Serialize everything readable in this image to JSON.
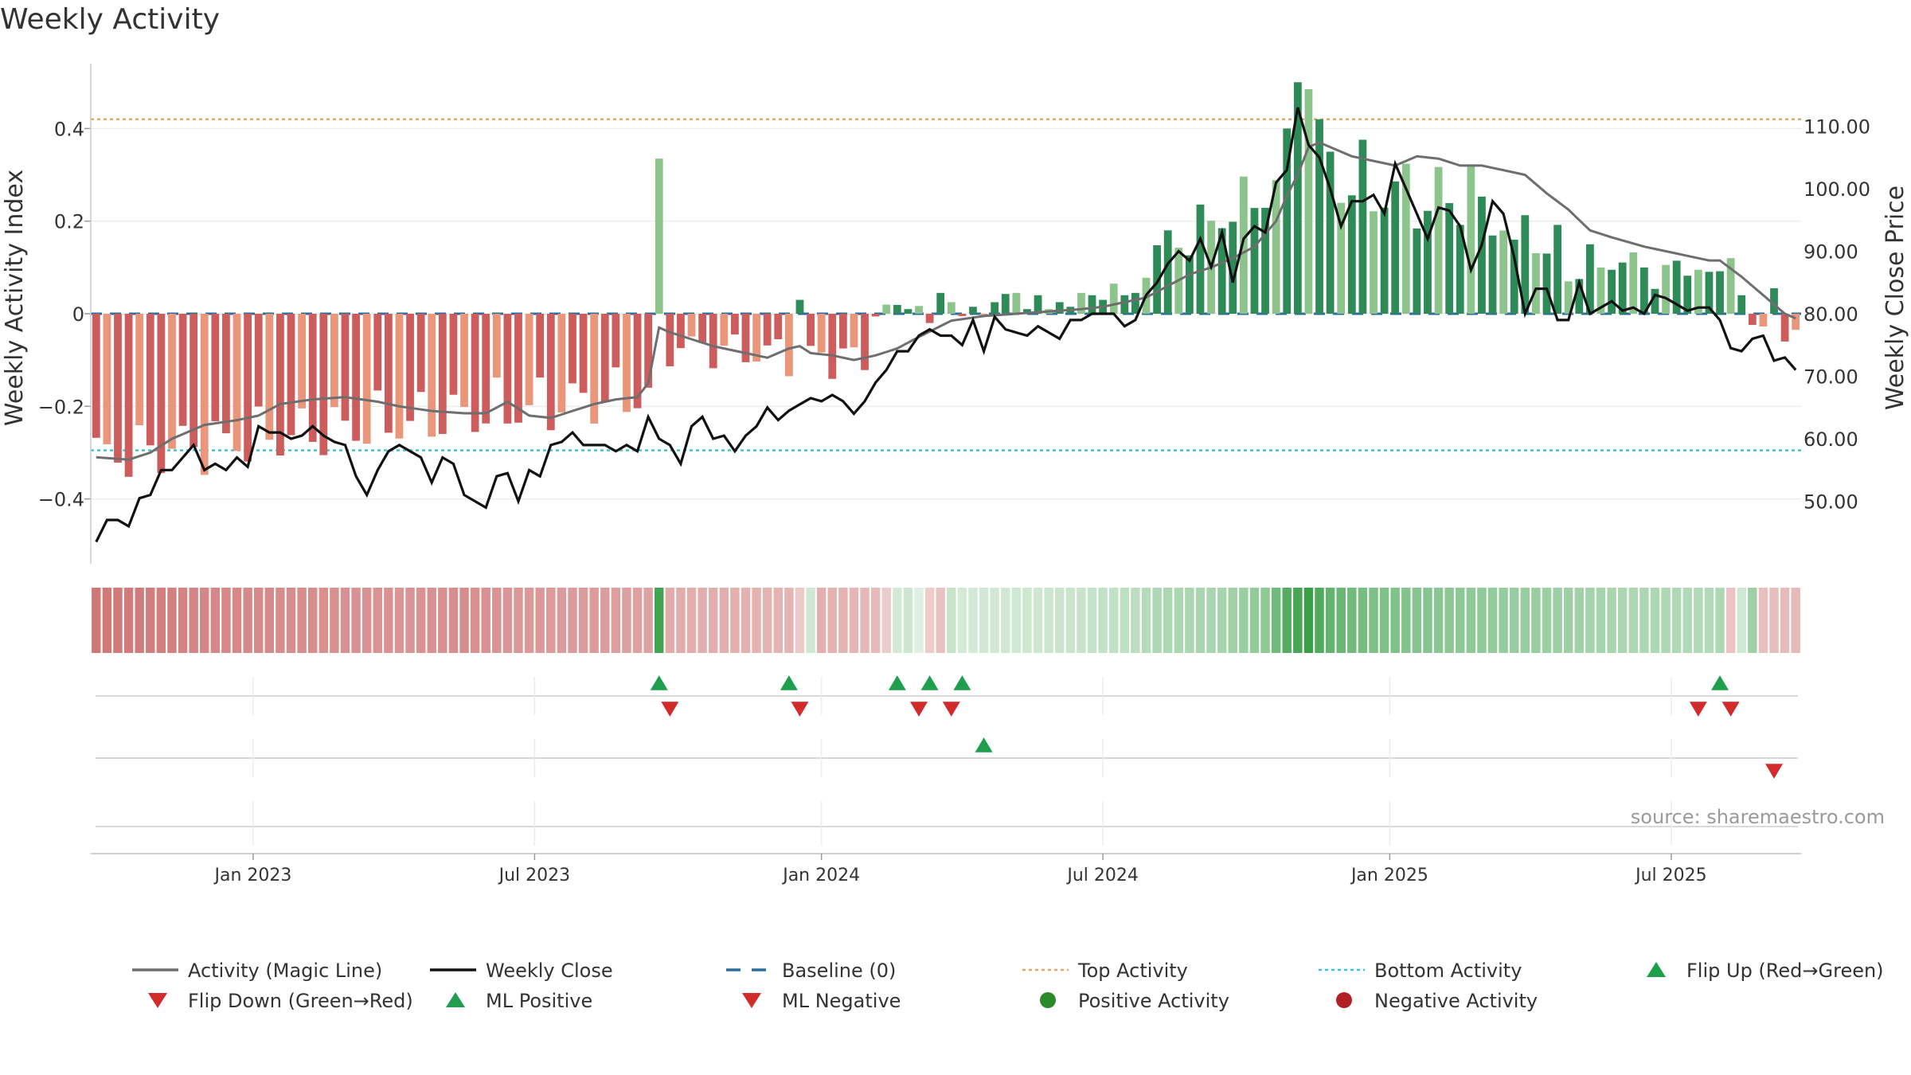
{
  "chart_data": {
    "type": "bar",
    "title": "Weekly Activity",
    "ylabel_left": "Weekly Activity Index",
    "ylabel_right": "Weekly Close Price",
    "y_left_range": [
      -0.54,
      0.54
    ],
    "y_right_range": [
      40,
      120
    ],
    "y_left_ticks": [
      -0.4,
      -0.2,
      0,
      0.2,
      0.4
    ],
    "y_left_tick_labels": [
      "−0.4",
      "−0.2",
      "0",
      "0.2",
      "0.4"
    ],
    "y_right_ticks": [
      50,
      60,
      70,
      80,
      90,
      100,
      110
    ],
    "y_right_tick_labels": [
      "50.00",
      "60.00",
      "70.00",
      "80.00",
      "90.00",
      "100.00",
      "110.00"
    ],
    "week_count": 158,
    "x_ticks": [
      {
        "label": "Jan 2023",
        "week": 14.5
      },
      {
        "label": "Jul 2023",
        "week": 40.5
      },
      {
        "label": "Jan 2024",
        "week": 67
      },
      {
        "label": "Jul 2024",
        "week": 93
      },
      {
        "label": "Jan 2025",
        "week": 119.5
      },
      {
        "label": "Jul 2025",
        "week": 145.5
      }
    ],
    "top_activity": 0.42,
    "bottom_activity": -0.295,
    "activity_segments": [
      {
        "from": 0,
        "to": 52,
        "start": -0.31,
        "end": -0.17,
        "noise": 0.06
      },
      {
        "from": 53,
        "to": 71,
        "start": -0.07,
        "end": -0.1,
        "noise": 0.04
      },
      {
        "from": 72,
        "to": 96,
        "start": 0.005,
        "end": 0.045,
        "noise": 0.02
      },
      {
        "from": 97,
        "to": 111,
        "start": 0.12,
        "end": 0.3,
        "noise": 0.05
      },
      {
        "from": 112,
        "to": 125,
        "start": 0.3,
        "end": 0.24,
        "noise": 0.08
      },
      {
        "from": 126,
        "to": 152,
        "start": 0.22,
        "end": 0.05,
        "noise": 0.04
      },
      {
        "from": 153,
        "to": 157,
        "start": -0.03,
        "end": -0.04,
        "noise": 0.01
      }
    ],
    "activity_overrides": [
      {
        "week": 52,
        "value": 0.335
      },
      {
        "week": 65,
        "value": 0.03
      },
      {
        "week": 75,
        "value": 0.01
      },
      {
        "week": 77,
        "value": -0.02
      },
      {
        "week": 78,
        "value": 0.045
      },
      {
        "week": 79,
        "value": 0.025
      },
      {
        "week": 80,
        "value": -0.005
      },
      {
        "week": 81,
        "value": 0.015
      },
      {
        "week": 82,
        "value": -0.005
      },
      {
        "week": 83,
        "value": 0.025
      },
      {
        "week": 85,
        "value": 0.045
      },
      {
        "week": 86,
        "value": 0.01
      },
      {
        "week": 87,
        "value": 0.04
      },
      {
        "week": 88,
        "value": 0.01
      },
      {
        "week": 89,
        "value": 0.025
      },
      {
        "week": 90,
        "value": 0.015
      },
      {
        "week": 91,
        "value": 0.045
      },
      {
        "week": 92,
        "value": 0.04
      },
      {
        "week": 93,
        "value": 0.03
      },
      {
        "week": 94,
        "value": 0.065
      },
      {
        "week": 95,
        "value": 0.04
      },
      {
        "week": 96,
        "value": 0.045
      },
      {
        "week": 110,
        "value": 0.4
      },
      {
        "week": 111,
        "value": 0.5
      },
      {
        "week": 112,
        "value": 0.485
      },
      {
        "week": 113,
        "value": 0.42
      },
      {
        "week": 114,
        "value": 0.35
      },
      {
        "week": 127,
        "value": 0.32
      },
      {
        "week": 131,
        "value": 0.16
      },
      {
        "week": 134,
        "value": 0.13
      },
      {
        "week": 136,
        "value": 0.07
      },
      {
        "week": 137,
        "value": 0.075
      },
      {
        "week": 139,
        "value": 0.1
      },
      {
        "week": 143,
        "value": 0.1
      },
      {
        "week": 148,
        "value": 0.095
      },
      {
        "week": 151,
        "value": 0.12
      },
      {
        "week": 152,
        "value": 0.04
      },
      {
        "week": 155,
        "value": 0.055
      },
      {
        "week": 156,
        "value": -0.06
      }
    ],
    "close_points": [
      [
        0,
        43.5
      ],
      [
        1,
        47
      ],
      [
        2,
        47
      ],
      [
        3,
        46
      ],
      [
        4,
        50.5
      ],
      [
        5,
        51
      ],
      [
        6,
        55
      ],
      [
        7,
        55
      ],
      [
        8,
        57
      ],
      [
        9,
        59
      ],
      [
        10,
        55
      ],
      [
        11,
        56
      ],
      [
        12,
        55
      ],
      [
        13,
        57
      ],
      [
        14,
        55.5
      ],
      [
        15,
        62
      ],
      [
        16,
        61
      ],
      [
        17,
        61
      ],
      [
        18,
        60
      ],
      [
        19,
        60.5
      ],
      [
        20,
        62
      ],
      [
        21,
        60.5
      ],
      [
        22,
        59.5
      ],
      [
        23,
        59
      ],
      [
        24,
        54
      ],
      [
        25,
        51
      ],
      [
        26,
        55
      ],
      [
        27,
        58
      ],
      [
        28,
        59
      ],
      [
        29,
        58
      ],
      [
        30,
        57
      ],
      [
        31,
        53
      ],
      [
        32,
        57
      ],
      [
        33,
        56
      ],
      [
        34,
        51
      ],
      [
        35,
        50
      ],
      [
        36,
        49
      ],
      [
        37,
        54
      ],
      [
        38,
        54.5
      ],
      [
        39,
        50
      ],
      [
        40,
        55
      ],
      [
        41,
        54
      ],
      [
        42,
        59
      ],
      [
        43,
        59.5
      ],
      [
        44,
        61
      ],
      [
        45,
        59
      ],
      [
        46,
        59
      ],
      [
        47,
        59
      ],
      [
        48,
        58
      ],
      [
        49,
        59
      ],
      [
        50,
        58
      ],
      [
        51,
        63.5
      ],
      [
        52,
        60
      ],
      [
        53,
        59
      ],
      [
        54,
        56
      ],
      [
        55,
        62
      ],
      [
        56,
        63.5
      ],
      [
        57,
        60
      ],
      [
        58,
        60.5
      ],
      [
        59,
        58
      ],
      [
        60,
        60.5
      ],
      [
        61,
        62
      ],
      [
        62,
        65
      ],
      [
        63,
        63
      ],
      [
        64,
        64.5
      ],
      [
        65,
        65.5
      ],
      [
        66,
        66.5
      ],
      [
        67,
        66
      ],
      [
        68,
        67
      ],
      [
        69,
        66
      ],
      [
        70,
        64
      ],
      [
        71,
        66
      ],
      [
        72,
        69
      ],
      [
        73,
        71
      ],
      [
        74,
        74
      ],
      [
        75,
        74
      ],
      [
        76,
        76.5
      ],
      [
        77,
        77.5
      ],
      [
        78,
        76.5
      ],
      [
        79,
        76.5
      ],
      [
        80,
        75
      ],
      [
        81,
        79
      ],
      [
        82,
        74
      ],
      [
        83,
        79.5
      ],
      [
        84,
        77.5
      ],
      [
        85,
        77
      ],
      [
        86,
        76.5
      ],
      [
        87,
        78
      ],
      [
        88,
        77
      ],
      [
        89,
        76
      ],
      [
        90,
        79
      ],
      [
        91,
        79
      ],
      [
        92,
        80
      ],
      [
        93,
        80
      ],
      [
        94,
        80
      ],
      [
        95,
        78
      ],
      [
        96,
        79
      ],
      [
        97,
        83
      ],
      [
        98,
        85
      ],
      [
        99,
        88
      ],
      [
        100,
        90
      ],
      [
        101,
        88.5
      ],
      [
        102,
        92
      ],
      [
        103,
        87.5
      ],
      [
        104,
        93
      ],
      [
        105,
        85
      ],
      [
        106,
        92
      ],
      [
        107,
        94
      ],
      [
        108,
        93
      ],
      [
        109,
        101
      ],
      [
        110,
        103
      ],
      [
        111,
        113
      ],
      [
        112,
        107
      ],
      [
        113,
        105
      ],
      [
        114,
        100
      ],
      [
        115,
        94
      ],
      [
        116,
        98
      ],
      [
        117,
        98
      ],
      [
        118,
        99
      ],
      [
        119,
        96
      ],
      [
        120,
        104
      ],
      [
        121,
        100
      ],
      [
        122,
        96
      ],
      [
        123,
        92
      ],
      [
        124,
        97
      ],
      [
        125,
        96.5
      ],
      [
        126,
        94
      ],
      [
        127,
        87
      ],
      [
        128,
        91
      ],
      [
        129,
        98
      ],
      [
        130,
        96
      ],
      [
        131,
        89
      ],
      [
        132,
        80
      ],
      [
        133,
        84
      ],
      [
        134,
        84
      ],
      [
        135,
        79
      ],
      [
        136,
        79
      ],
      [
        137,
        85
      ],
      [
        138,
        80
      ],
      [
        139,
        81
      ],
      [
        140,
        82
      ],
      [
        141,
        80.5
      ],
      [
        142,
        81
      ],
      [
        143,
        80
      ],
      [
        144,
        83
      ],
      [
        145,
        82.5
      ],
      [
        146,
        81.5
      ],
      [
        147,
        80.5
      ],
      [
        148,
        81
      ],
      [
        149,
        81
      ],
      [
        150,
        79
      ],
      [
        151,
        74.5
      ],
      [
        152,
        74
      ],
      [
        153,
        76
      ],
      [
        154,
        76.5
      ],
      [
        155,
        72.5
      ],
      [
        156,
        73
      ],
      [
        157,
        71
      ]
    ],
    "magic_line_points": [
      [
        0,
        -0.31
      ],
      [
        3,
        -0.315
      ],
      [
        5,
        -0.3
      ],
      [
        7,
        -0.27
      ],
      [
        10,
        -0.24
      ],
      [
        13,
        -0.23
      ],
      [
        15,
        -0.22
      ],
      [
        17,
        -0.195
      ],
      [
        20,
        -0.185
      ],
      [
        23,
        -0.18
      ],
      [
        26,
        -0.19
      ],
      [
        28,
        -0.2
      ],
      [
        31,
        -0.21
      ],
      [
        34,
        -0.215
      ],
      [
        36,
        -0.215
      ],
      [
        38,
        -0.19
      ],
      [
        40,
        -0.22
      ],
      [
        42,
        -0.225
      ],
      [
        44,
        -0.21
      ],
      [
        46,
        -0.195
      ],
      [
        48,
        -0.185
      ],
      [
        50,
        -0.18
      ],
      [
        51,
        -0.15
      ],
      [
        52,
        -0.03
      ],
      [
        53,
        -0.04
      ],
      [
        55,
        -0.055
      ],
      [
        57,
        -0.07
      ],
      [
        60,
        -0.085
      ],
      [
        62,
        -0.095
      ],
      [
        64,
        -0.075
      ],
      [
        65,
        -0.07
      ],
      [
        66,
        -0.085
      ],
      [
        68,
        -0.09
      ],
      [
        70,
        -0.1
      ],
      [
        72,
        -0.09
      ],
      [
        74,
        -0.075
      ],
      [
        76,
        -0.05
      ],
      [
        79,
        -0.015
      ],
      [
        82,
        -0.005
      ],
      [
        85,
        0
      ],
      [
        88,
        0.005
      ],
      [
        91,
        0.01
      ],
      [
        93,
        0.015
      ],
      [
        95,
        0.025
      ],
      [
        97,
        0.035
      ],
      [
        99,
        0.06
      ],
      [
        101,
        0.085
      ],
      [
        103,
        0.1
      ],
      [
        105,
        0.12
      ],
      [
        107,
        0.145
      ],
      [
        109,
        0.2
      ],
      [
        110,
        0.255
      ],
      [
        111,
        0.3
      ],
      [
        112,
        0.36
      ],
      [
        113,
        0.37
      ],
      [
        114,
        0.36
      ],
      [
        116,
        0.34
      ],
      [
        118,
        0.33
      ],
      [
        120,
        0.32
      ],
      [
        122,
        0.34
      ],
      [
        124,
        0.335
      ],
      [
        126,
        0.32
      ],
      [
        128,
        0.32
      ],
      [
        130,
        0.31
      ],
      [
        132,
        0.3
      ],
      [
        134,
        0.26
      ],
      [
        136,
        0.225
      ],
      [
        138,
        0.18
      ],
      [
        140,
        0.165
      ],
      [
        143,
        0.145
      ],
      [
        146,
        0.13
      ],
      [
        149,
        0.115
      ],
      [
        150,
        0.115
      ],
      [
        152,
        0.08
      ],
      [
        154,
        0.04
      ],
      [
        156,
        0.0
      ],
      [
        157,
        -0.01
      ]
    ],
    "heat_strip": {
      "anchors": [
        [
          0,
          -1.0
        ],
        [
          5,
          -0.95
        ],
        [
          10,
          -0.85
        ],
        [
          16,
          -0.8
        ],
        [
          22,
          -0.75
        ],
        [
          28,
          -0.7
        ],
        [
          34,
          -0.78
        ],
        [
          40,
          -0.65
        ],
        [
          46,
          -0.62
        ],
        [
          51,
          -0.55
        ],
        [
          53,
          -0.45
        ],
        [
          58,
          -0.42
        ],
        [
          64,
          -0.35
        ],
        [
          66,
          0.1
        ],
        [
          67,
          -0.4
        ],
        [
          72,
          -0.3
        ],
        [
          74,
          0.08
        ],
        [
          75,
          0.12
        ],
        [
          78,
          -0.22
        ],
        [
          79,
          0.15
        ],
        [
          80,
          0.08
        ],
        [
          85,
          0.1
        ],
        [
          90,
          0.14
        ],
        [
          96,
          0.22
        ],
        [
          98,
          0.3
        ],
        [
          104,
          0.35
        ],
        [
          108,
          0.5
        ],
        [
          110,
          0.85
        ],
        [
          112,
          1.0
        ],
        [
          114,
          0.75
        ],
        [
          118,
          0.6
        ],
        [
          124,
          0.52
        ],
        [
          130,
          0.45
        ],
        [
          136,
          0.4
        ],
        [
          140,
          0.33
        ],
        [
          145,
          0.3
        ],
        [
          149,
          0.28
        ],
        [
          150,
          0.3
        ],
        [
          151,
          -0.2
        ],
        [
          153,
          0.4
        ],
        [
          154,
          -0.25
        ],
        [
          157,
          -0.3
        ]
      ],
      "spikes": [
        {
          "week": 52,
          "value": 0.95
        }
      ]
    },
    "flip_up_weeks": [
      52,
      64,
      74,
      77,
      80,
      150
    ],
    "flip_down_weeks": [
      53,
      65,
      76,
      79,
      148,
      151
    ],
    "ml_positive_weeks": [
      82
    ],
    "ml_negative_weeks": [
      155
    ],
    "legend_entries": [
      {
        "label": "Activity (Magic Line)",
        "symbol": "line",
        "color": "#6e6e6e"
      },
      {
        "label": "Weekly Close",
        "symbol": "line",
        "color": "#111111"
      },
      {
        "label": "Baseline (0)",
        "symbol": "dash",
        "color": "#2b6c9e"
      },
      {
        "label": "Top Activity",
        "symbol": "dot-line",
        "color": "#e3a664"
      },
      {
        "label": "Bottom Activity",
        "symbol": "dot-line",
        "color": "#3fc4d6"
      },
      {
        "label": "Flip Up (Red→Green)",
        "symbol": "tri-up",
        "color": "#1f9e4e"
      },
      {
        "label": "Flip Down (Green→Red)",
        "symbol": "tri-down",
        "color": "#d12b2b"
      },
      {
        "label": "ML Positive",
        "symbol": "tri-up",
        "color": "#1f9e4e"
      },
      {
        "label": "ML Negative",
        "symbol": "tri-down",
        "color": "#d12b2b"
      },
      {
        "label": "Positive Activity",
        "symbol": "circle",
        "color": "#2a8a2a"
      },
      {
        "label": "Negative Activity",
        "symbol": "circle",
        "color": "#b22222"
      }
    ],
    "source_label": "source: sharemaestro.com",
    "colors": {
      "pos_dark": "#2e8b57",
      "pos_light": "#8cc48c",
      "neg_dark": "#cd5c5c",
      "neg_light": "#e9967a",
      "magic_line": "#6e6e6e",
      "close_line": "#111111",
      "baseline": "#2b6c9e",
      "top_line": "#e3a664",
      "bottom_line": "#3fc4d6",
      "flip_up": "#1f9e4e",
      "flip_down": "#d12b2b",
      "grid": "#e6e6e6"
    }
  }
}
